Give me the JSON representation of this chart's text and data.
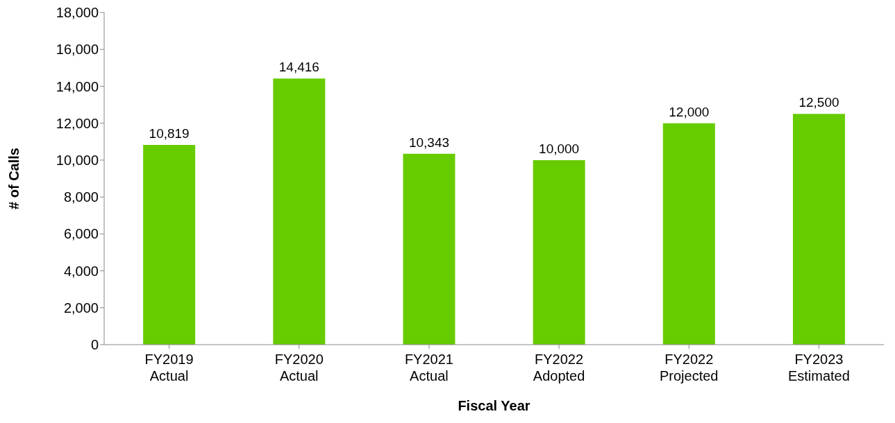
{
  "chart_data": {
    "type": "bar",
    "xlabel": "Fiscal Year",
    "ylabel": "# of Calls",
    "categories": [
      "FY2019 Actual",
      "FY2020 Actual",
      "FY2021 Actual",
      "FY2022 Adopted",
      "FY2022 Projected",
      "FY2023 Estimated"
    ],
    "values": [
      10819,
      14416,
      10343,
      10000,
      12000,
      12500
    ],
    "color": "#66cc00",
    "value_labels": [
      "10,819",
      "14,416",
      "10,343",
      "10,000",
      "12,000",
      "12,500"
    ],
    "ylim": [
      0,
      18000
    ],
    "yticks": [
      0,
      {
        "value": 2000,
        "label": "2,000"
      },
      {
        "value": 4000,
        "label": "4,000"
      },
      {
        "value": 6000,
        "label": "6,000"
      },
      {
        "value": 8000,
        "label": "8,000"
      },
      {
        "value": 10000,
        "label": "10,000"
      },
      {
        "value": 12000,
        "label": "12,000"
      },
      {
        "value": 14000,
        "label": "14,000"
      },
      {
        "value": 16000,
        "label": "16,000"
      },
      {
        "value": 18000,
        "label": "18,000"
      }
    ],
    "grid": false,
    "legend": false
  }
}
